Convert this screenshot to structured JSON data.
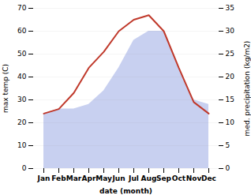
{
  "chart_data": {
    "type": "line",
    "categories": [
      "Jan",
      "Feb",
      "Mar",
      "Apr",
      "May",
      "Jun",
      "Jul",
      "Aug",
      "Sep",
      "Oct",
      "Nov",
      "Dec"
    ],
    "series": [
      {
        "type": "area",
        "axis": "y2",
        "color": "#c8d0f0",
        "values": [
          12,
          13,
          13,
          14,
          17,
          22,
          28,
          30,
          30,
          22,
          15,
          14
        ]
      },
      {
        "type": "line",
        "color": "#c0392b",
        "values": [
          24,
          26,
          33,
          44,
          51,
          60,
          65,
          67,
          60,
          44,
          29,
          24
        ]
      }
    ],
    "xlabel": "date (month)",
    "ylabel": "max temp (C)",
    "y2label": "med. precipitation (kg/m2)",
    "ylim": [
      0,
      70
    ],
    "yticks": [
      0,
      10,
      20,
      30,
      40,
      50,
      60,
      70
    ],
    "y2lim": [
      0,
      35
    ],
    "y2ticks": [
      0,
      5,
      10,
      15,
      20,
      25,
      30,
      35
    ],
    "grid": true
  }
}
